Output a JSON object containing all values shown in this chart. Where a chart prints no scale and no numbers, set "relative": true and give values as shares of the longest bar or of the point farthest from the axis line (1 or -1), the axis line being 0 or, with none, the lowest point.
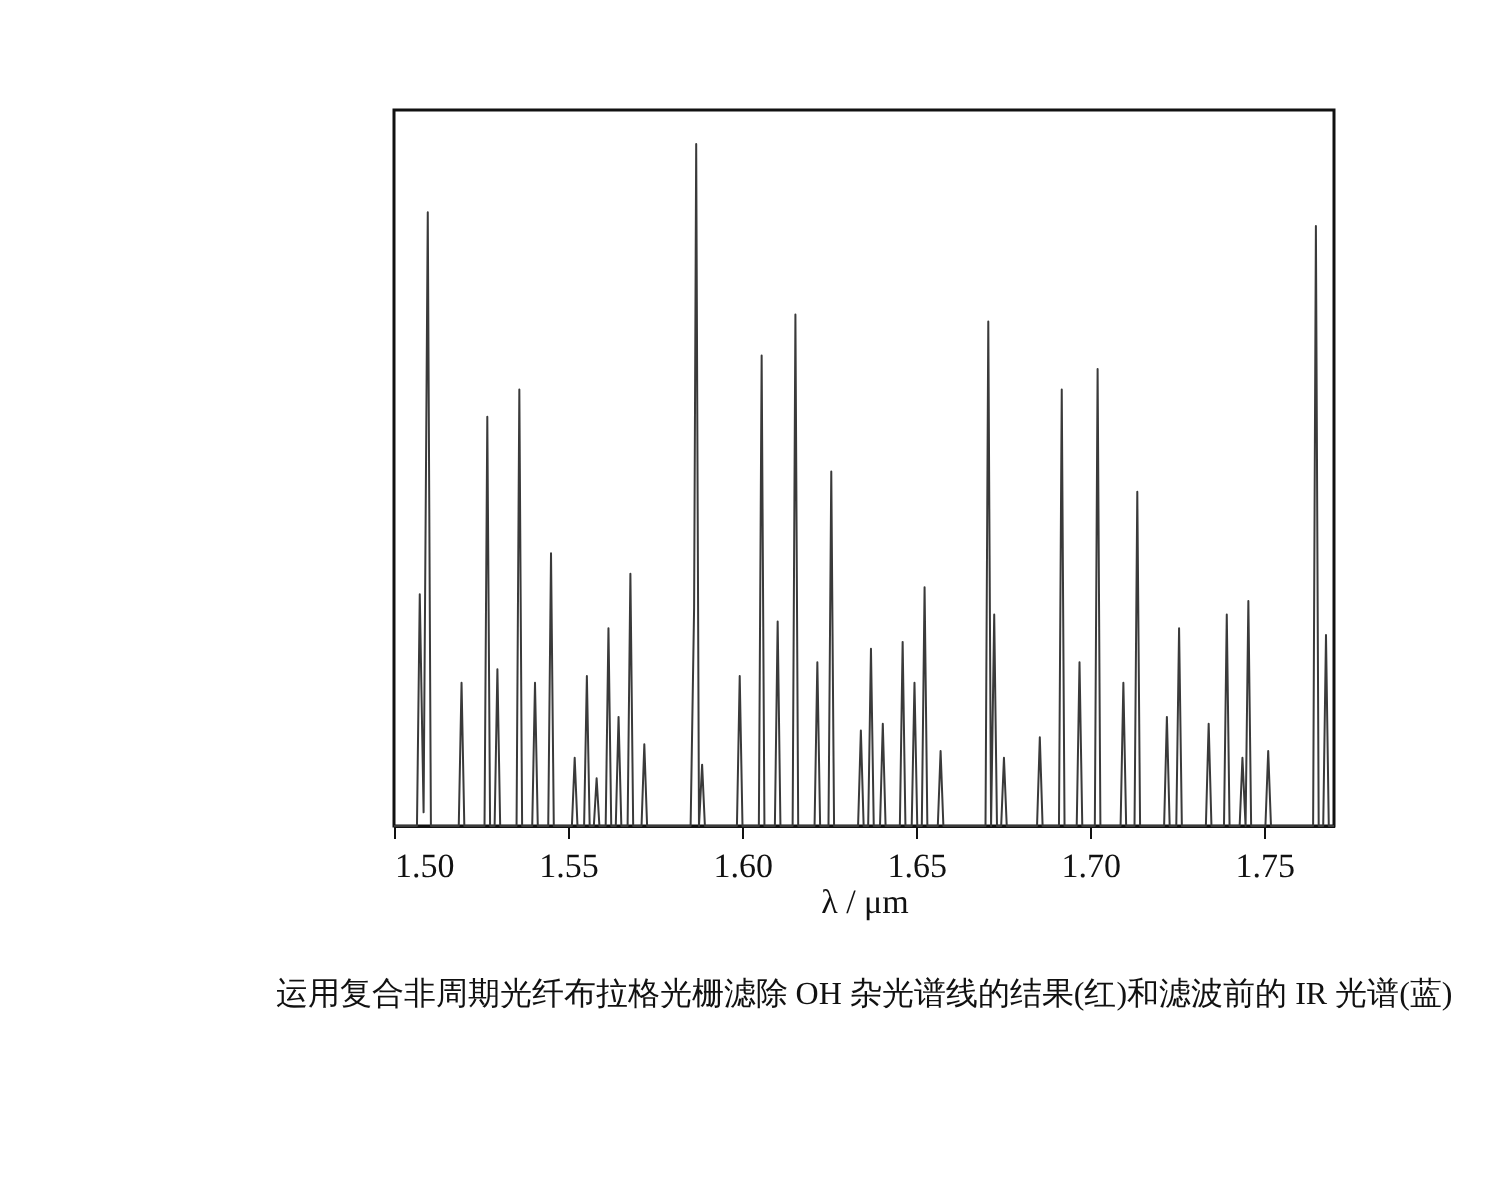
{
  "chart_data": {
    "type": "line",
    "relative": true,
    "xlabel": "λ / μm",
    "xlim": [
      1.5,
      1.77
    ],
    "xticks": [
      {
        "value": 1.5,
        "label": "1.50"
      },
      1.55,
      {
        "value": 1.6,
        "label": "1.60"
      },
      1.65,
      {
        "value": 1.7,
        "label": "1.70"
      },
      1.75
    ],
    "grid": false,
    "marker": "none",
    "line_style": "solid",
    "annotations": [
      "运用复合非周期光纤布拉格光栅滤除 OH 杂光谱线的结果(红)和滤波前的 IR 光谱(蓝)"
    ],
    "x": [
      1.5,
      1.5066,
      1.5074,
      1.5085,
      1.5097,
      1.5106,
      1.5186,
      1.5194,
      1.5202,
      1.526,
      1.5268,
      1.5276,
      1.5289,
      1.5297,
      1.5305,
      1.5352,
      1.536,
      1.5368,
      1.5397,
      1.5405,
      1.5413,
      1.5443,
      1.5451,
      1.5459,
      1.5511,
      1.5519,
      1.5527,
      1.5546,
      1.5554,
      1.5562,
      1.5574,
      1.5582,
      1.559,
      1.5608,
      1.5616,
      1.5624,
      1.5637,
      1.5645,
      1.5653,
      1.5671,
      1.5679,
      1.5687,
      1.5711,
      1.5719,
      1.5727,
      1.5852,
      1.5862,
      1.5868,
      1.5876,
      1.5885,
      1.5893,
      1.5985,
      1.5993,
      1.6001,
      1.6048,
      1.6056,
      1.6064,
      1.6094,
      1.6102,
      1.611,
      1.6145,
      1.6153,
      1.6161,
      1.6208,
      1.6216,
      1.6224,
      1.6248,
      1.6256,
      1.6264,
      1.6333,
      1.6341,
      1.6349,
      1.6362,
      1.637,
      1.6378,
      1.6396,
      1.6404,
      1.6412,
      1.6453,
      1.6461,
      1.6469,
      1.6487,
      1.6495,
      1.6503,
      1.6516,
      1.6524,
      1.6532,
      1.6562,
      1.657,
      1.6578,
      1.6699,
      1.6707,
      1.6715,
      1.6724,
      1.6732,
      1.6744,
      1.6752,
      1.676,
      1.6847,
      1.6855,
      1.6863,
      1.691,
      1.6918,
      1.6926,
      1.6961,
      1.6969,
      1.6977,
      1.7013,
      1.7021,
      1.7029,
      1.7087,
      1.7095,
      1.7103,
      1.7127,
      1.7135,
      1.7143,
      1.7212,
      1.722,
      1.7228,
      1.7247,
      1.7255,
      1.7263,
      1.7332,
      1.734,
      1.7348,
      1.7384,
      1.7392,
      1.74,
      1.7429,
      1.7437,
      1.7446,
      1.7454,
      1.7462,
      1.7503,
      1.7511,
      1.7519,
      1.764,
      1.7648,
      1.7656,
      1.7669,
      1.7677,
      1.7685,
      1.77
    ],
    "series": [
      {
        "color": "#3a3a3a",
        "values": [
          0,
          0,
          0.34,
          0.02,
          0.9,
          0,
          0,
          0.21,
          0,
          0,
          0.6,
          0,
          0,
          0.23,
          0,
          0,
          0.64,
          0,
          0,
          0.21,
          0,
          0,
          0.4,
          0,
          0,
          0.1,
          0,
          0,
          0.22,
          0,
          0,
          0.07,
          0,
          0,
          0.29,
          0,
          0,
          0.16,
          0,
          0,
          0.37,
          0,
          0,
          0.12,
          0,
          0,
          0.32,
          1,
          0,
          0.09,
          0,
          0,
          0.22,
          0,
          0,
          0.69,
          0,
          0,
          0.3,
          0,
          0,
          0.75,
          0,
          0,
          0.24,
          0,
          0,
          0.52,
          0,
          0,
          0.14,
          0,
          0,
          0.26,
          0,
          0,
          0.15,
          0,
          0,
          0.27,
          0,
          0,
          0.21,
          0,
          0,
          0.35,
          0,
          0,
          0.11,
          0,
          0,
          0.74,
          0,
          0.31,
          0,
          0,
          0.1,
          0,
          0,
          0.13,
          0,
          0,
          0.64,
          0,
          0,
          0.24,
          0,
          0,
          0.67,
          0,
          0,
          0.21,
          0,
          0,
          0.49,
          0,
          0,
          0.16,
          0,
          0,
          0.29,
          0,
          0,
          0.15,
          0,
          0,
          0.31,
          0,
          0,
          0.1,
          0,
          0.33,
          0,
          0,
          0.11,
          0,
          0,
          0.88,
          0,
          0,
          0.28,
          0,
          0
        ]
      }
    ]
  }
}
